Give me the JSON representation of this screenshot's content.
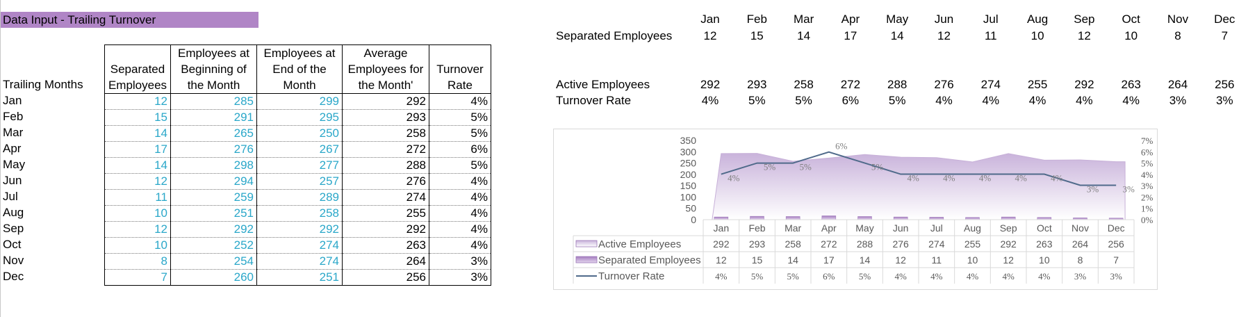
{
  "title": "Data Input - Trailing Turnover",
  "row_header": "Trailing Months",
  "months": [
    "Jan",
    "Feb",
    "Mar",
    "Apr",
    "May",
    "Jun",
    "Jul",
    "Aug",
    "Sep",
    "Oct",
    "Nov",
    "Dec"
  ],
  "table": {
    "headers": [
      [
        "",
        "Separated",
        "Employees"
      ],
      [
        "Employees at",
        "Beginning of",
        "the Month"
      ],
      [
        "Employees at",
        "End of the",
        "Month"
      ],
      [
        "Average",
        "Employees for",
        "the Month'"
      ],
      [
        "",
        "Turnover",
        "Rate"
      ]
    ],
    "separated": [
      12,
      15,
      14,
      17,
      14,
      12,
      11,
      10,
      12,
      10,
      8,
      7
    ],
    "beginning": [
      285,
      291,
      265,
      276,
      298,
      294,
      259,
      251,
      292,
      252,
      254,
      260
    ],
    "end": [
      299,
      295,
      250,
      267,
      277,
      257,
      289,
      258,
      292,
      274,
      274,
      251
    ],
    "average": [
      292,
      293,
      258,
      272,
      288,
      276,
      274,
      255,
      292,
      263,
      264,
      256
    ],
    "rate": [
      "4%",
      "5%",
      "5%",
      "6%",
      "5%",
      "4%",
      "4%",
      "4%",
      "4%",
      "4%",
      "3%",
      "3%"
    ]
  },
  "summary": {
    "separated_label": "Separated Employees",
    "active_label": "Active Employees",
    "rate_label": "Turnover Rate"
  },
  "chart_data": {
    "type": "bar",
    "categories": [
      "Jan",
      "Feb",
      "Mar",
      "Apr",
      "May",
      "Jun",
      "Jul",
      "Aug",
      "Sep",
      "Oct",
      "Nov",
      "Dec"
    ],
    "series": [
      {
        "name": "Active Employees",
        "type": "area",
        "axis": "left",
        "values": [
          292,
          293,
          258,
          272,
          288,
          276,
          274,
          255,
          292,
          263,
          264,
          256
        ]
      },
      {
        "name": "Separated Employees",
        "type": "bar",
        "axis": "left",
        "values": [
          12,
          15,
          14,
          17,
          14,
          12,
          11,
          10,
          12,
          10,
          8,
          7
        ]
      },
      {
        "name": "Turnover Rate",
        "type": "line",
        "axis": "right",
        "values": [
          0.04,
          0.05,
          0.05,
          0.06,
          0.05,
          0.04,
          0.04,
          0.04,
          0.04,
          0.04,
          0.03,
          0.03
        ],
        "labels": [
          "4%",
          "5%",
          "5%",
          "6%",
          "5%",
          "4%",
          "4%",
          "4%",
          "4%",
          "4%",
          "3%",
          "3%"
        ]
      }
    ],
    "y_ticks": [
      "350",
      "300",
      "250",
      "200",
      "150",
      "100",
      "50",
      "0"
    ],
    "y2_ticks": [
      "7%",
      "6%",
      "5%",
      "4%",
      "3%",
      "2%",
      "1%",
      "0%"
    ],
    "ylim": [
      0,
      350
    ],
    "y2lim": [
      0,
      0.07
    ],
    "legend": "data-table",
    "colors": {
      "area": "#c9b3db",
      "bar": "#b48fcc",
      "line": "#4f6a8a"
    }
  }
}
